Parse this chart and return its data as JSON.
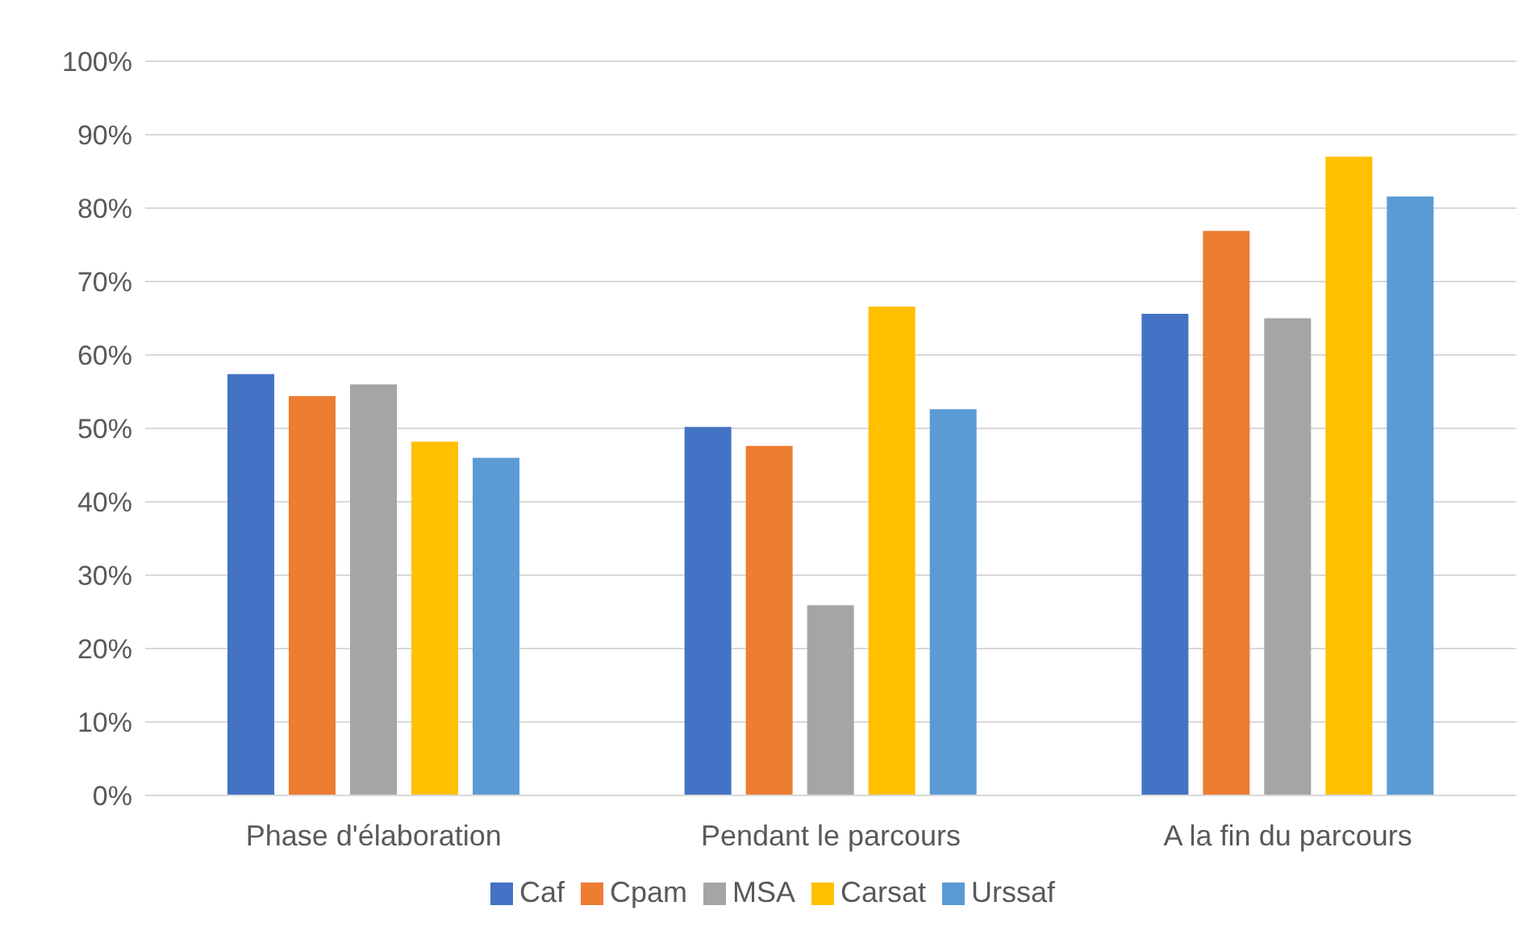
{
  "chart_data": {
    "type": "bar",
    "categories": [
      "Phase d'élaboration",
      "Pendant le parcours",
      "A la fin du parcours"
    ],
    "series": [
      {
        "name": "Caf",
        "color": "#4472c4",
        "values": [
          57.4,
          50.2,
          65.6
        ]
      },
      {
        "name": "Cpam",
        "color": "#ed7d31",
        "values": [
          54.4,
          47.6,
          76.9
        ]
      },
      {
        "name": "MSA",
        "color": "#a5a5a5",
        "values": [
          56.0,
          25.9,
          65.0
        ]
      },
      {
        "name": "Carsat",
        "color": "#ffc000",
        "values": [
          48.2,
          66.6,
          87.0
        ]
      },
      {
        "name": "Urssaf",
        "color": "#5b9bd5",
        "values": [
          46.0,
          52.6,
          81.6
        ]
      }
    ],
    "ylim": [
      0,
      100
    ],
    "yticks": [
      {
        "value": 0,
        "label": "0%"
      },
      {
        "value": 10,
        "label": "10%"
      },
      {
        "value": 20,
        "label": "20%"
      },
      {
        "value": 30,
        "label": "30%"
      },
      {
        "value": 40,
        "label": "40%"
      },
      {
        "value": 50,
        "label": "50%"
      },
      {
        "value": 60,
        "label": "60%"
      },
      {
        "value": 70,
        "label": "70%"
      },
      {
        "value": 80,
        "label": "80%"
      },
      {
        "value": 90,
        "label": "90%"
      },
      {
        "value": 100,
        "label": "100%"
      }
    ],
    "grid": "y",
    "legend": "bottom"
  }
}
